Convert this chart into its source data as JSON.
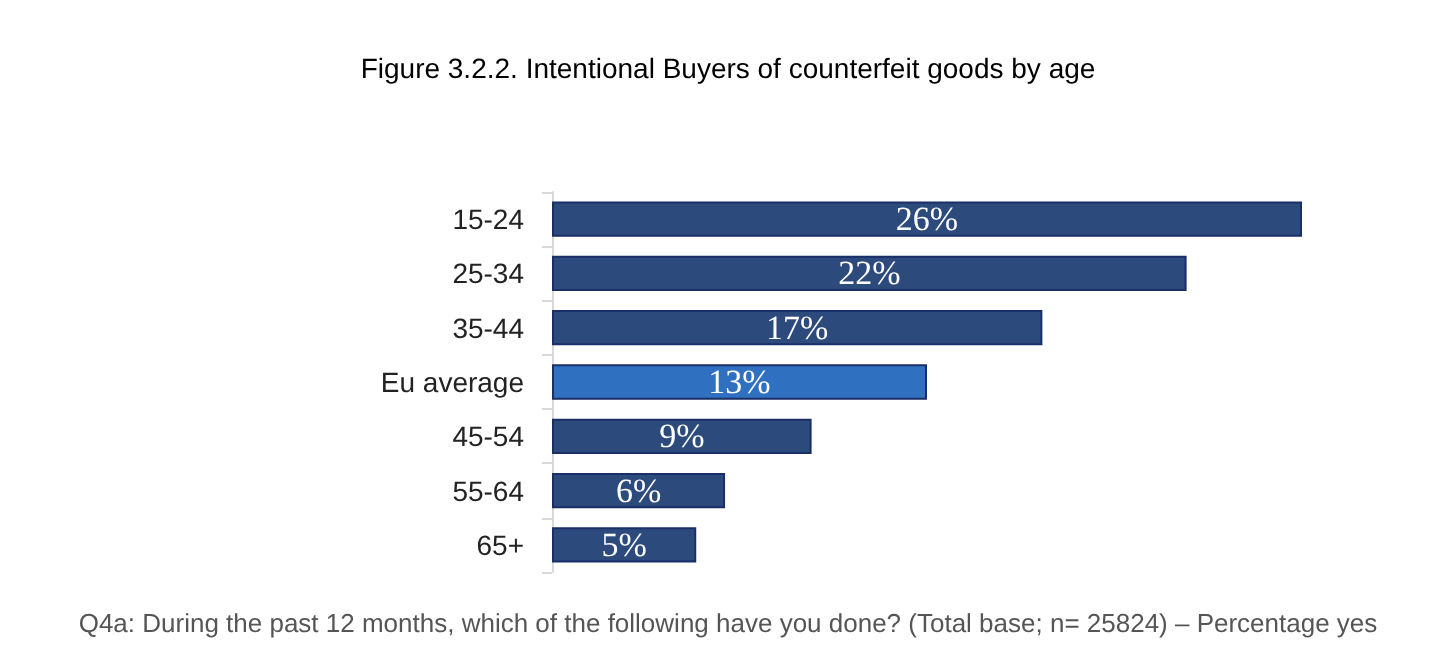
{
  "chart_data": {
    "type": "bar",
    "orientation": "horizontal",
    "title": "Figure 3.2.2. Intentional Buyers of counterfeit goods by age",
    "categories": [
      "15-24",
      "25-34",
      "35-44",
      "Eu average",
      "45-54",
      "55-64",
      "65+"
    ],
    "values": [
      26,
      22,
      17,
      13,
      9,
      6,
      5
    ],
    "value_labels": [
      "26%",
      "22%",
      "17%",
      "13%",
      "9%",
      "6%",
      "5%"
    ],
    "colors": [
      "#2c4a7c",
      "#2c4a7c",
      "#2c4a7c",
      "#3070c0",
      "#2c4a7c",
      "#2c4a7c",
      "#2c4a7c"
    ],
    "annotations": [
      "Q4a: During the past 12 months, which of the following have you done? (Total base; n= 25824) – Percentage yes"
    ]
  }
}
